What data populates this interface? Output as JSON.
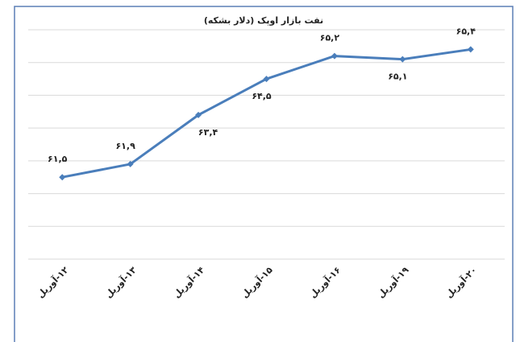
{
  "chart_data": {
    "type": "line",
    "title": "نفت بازار اوپک (دلار بشکه)",
    "categories": [
      "۱۲-آوریل",
      "۱۳-آوریل",
      "۱۴-آوریل",
      "۱۵-آوریل",
      "۱۶-آوریل",
      "۱۹-آوریل",
      "۲۰-آوریل"
    ],
    "values": [
      61.5,
      61.9,
      63.4,
      64.5,
      65.2,
      65.1,
      65.4
    ],
    "value_labels": [
      "۶۱,۵",
      "۶۱,۹",
      "۶۳,۴",
      "۶۴,۵",
      "۶۵,۲",
      "۶۵,۱",
      "۶۵,۴"
    ],
    "color": "#4a7ebb",
    "ylim": [
      59,
      66
    ],
    "yticks": [
      59,
      60,
      61,
      62,
      63,
      64,
      65,
      66
    ],
    "grid": true
  }
}
